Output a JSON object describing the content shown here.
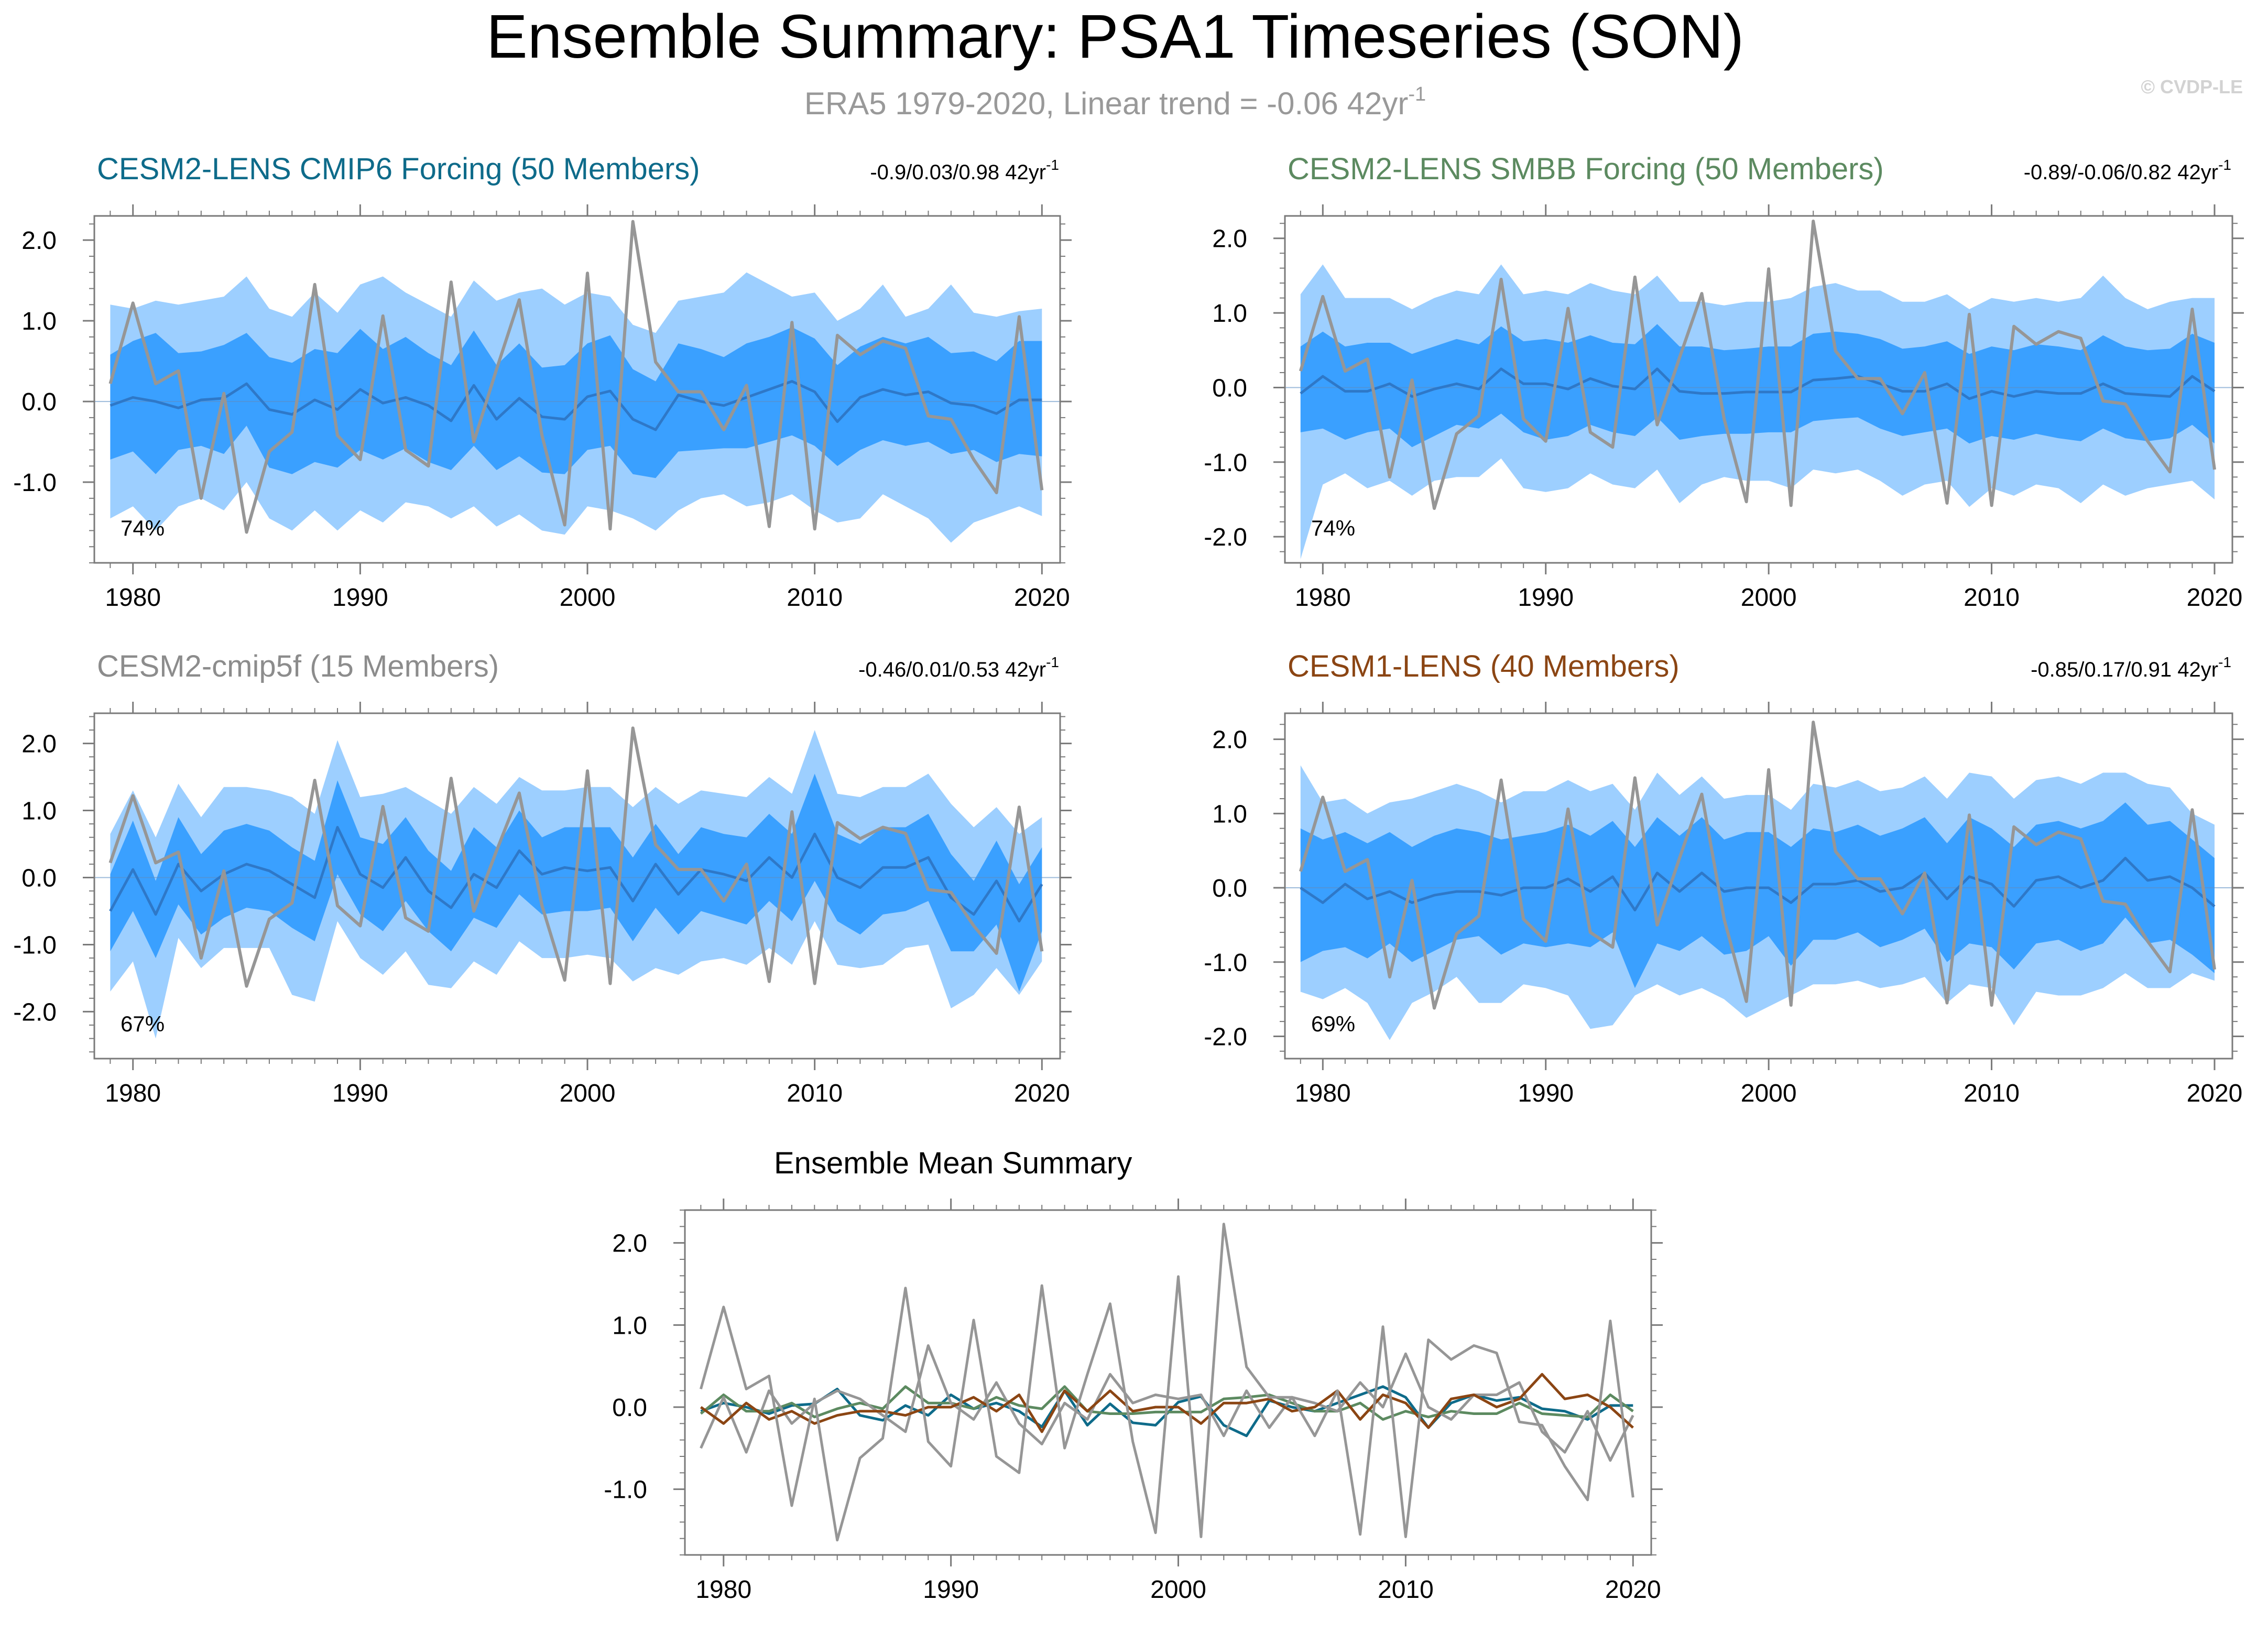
{
  "page": {
    "title": "Ensemble Summary: PSA1 Timeseries (SON)",
    "subtitle": "ERA5 1979-2020, Linear trend = -0.06 42yr",
    "subtitle_sup": "-1",
    "watermark": "© CVDP-LE"
  },
  "colors": {
    "band_outer": "#9dcfff",
    "band_inner": "#3aa0ff",
    "ens_mean": "#2e78c8",
    "obs": "#969696",
    "frame": "#7a7a7a",
    "title_cmip6": "#0e6b8a",
    "title_smbb": "#5c8a60",
    "title_cmip5f": "#8c8c8c",
    "title_cesm1": "#8b4513"
  },
  "chart_data": [
    {
      "type": "line",
      "id": "cmip6",
      "title": "CESM2-LENS CMIP6 Forcing (50 Members)",
      "title_color": "#0e6b8a",
      "trend_range": "-0.9/0.03/0.98 42yr",
      "trend_sup": "-1",
      "percent": "74%",
      "xlim": [
        1978.3,
        2020.8
      ],
      "ylim": [
        -2.0,
        2.3
      ],
      "yticks": [
        2.0,
        1.0,
        0.0,
        -1.0
      ],
      "ytick_labels": [
        "2.0",
        "1.0",
        "0.0",
        "-1.0"
      ],
      "xticks": [
        1980,
        1990,
        2000,
        2010,
        2020
      ],
      "xtick_labels": [
        "1980",
        "1990",
        "2000",
        "2010",
        "2020"
      ],
      "x_start": 1979,
      "mean": [
        -0.05,
        0.05,
        0.0,
        -0.08,
        0.02,
        0.04,
        0.22,
        -0.1,
        -0.16,
        0.02,
        -0.1,
        0.15,
        -0.02,
        0.05,
        -0.05,
        -0.24,
        0.2,
        -0.22,
        0.04,
        -0.19,
        -0.22,
        0.06,
        0.13,
        -0.22,
        -0.35,
        0.08,
        0.0,
        -0.05,
        0.05,
        0.15,
        0.25,
        0.12,
        -0.25,
        0.05,
        0.15,
        0.08,
        0.12,
        -0.02,
        -0.05,
        -0.15,
        0.02,
        0.02
      ],
      "p_inner_lo": [
        -0.72,
        -0.62,
        -0.9,
        -0.6,
        -0.55,
        -0.65,
        -0.3,
        -0.82,
        -0.9,
        -0.75,
        -0.82,
        -0.6,
        -0.72,
        -0.58,
        -0.75,
        -0.85,
        -0.55,
        -0.85,
        -0.68,
        -0.88,
        -0.9,
        -0.6,
        -0.55,
        -0.9,
        -0.95,
        -0.62,
        -0.6,
        -0.58,
        -0.58,
        -0.5,
        -0.42,
        -0.55,
        -0.8,
        -0.6,
        -0.48,
        -0.55,
        -0.5,
        -0.65,
        -0.6,
        -0.75,
        -0.65,
        -0.68
      ],
      "p_inner_hi": [
        0.58,
        0.75,
        0.85,
        0.6,
        0.62,
        0.7,
        0.85,
        0.55,
        0.48,
        0.65,
        0.6,
        0.9,
        0.65,
        0.8,
        0.6,
        0.45,
        0.88,
        0.45,
        0.72,
        0.42,
        0.45,
        0.72,
        0.82,
        0.4,
        0.25,
        0.72,
        0.65,
        0.55,
        0.72,
        0.8,
        0.92,
        0.78,
        0.45,
        0.68,
        0.8,
        0.72,
        0.8,
        0.6,
        0.62,
        0.5,
        0.75,
        0.75
      ],
      "p_outer_lo": [
        -1.45,
        -1.3,
        -1.6,
        -1.3,
        -1.2,
        -1.35,
        -1.0,
        -1.45,
        -1.6,
        -1.35,
        -1.6,
        -1.35,
        -1.5,
        -1.25,
        -1.3,
        -1.45,
        -1.3,
        -1.55,
        -1.4,
        -1.6,
        -1.65,
        -1.3,
        -1.35,
        -1.45,
        -1.6,
        -1.35,
        -1.2,
        -1.15,
        -1.3,
        -1.25,
        -1.15,
        -1.35,
        -1.5,
        -1.45,
        -1.15,
        -1.3,
        -1.45,
        -1.75,
        -1.5,
        -1.4,
        -1.3,
        -1.42
      ],
      "p_outer_hi": [
        1.2,
        1.15,
        1.25,
        1.2,
        1.25,
        1.3,
        1.55,
        1.15,
        1.05,
        1.35,
        1.1,
        1.45,
        1.55,
        1.35,
        1.2,
        1.05,
        1.5,
        1.25,
        1.35,
        1.4,
        1.2,
        1.35,
        1.3,
        0.95,
        0.85,
        1.25,
        1.3,
        1.35,
        1.6,
        1.45,
        1.3,
        1.35,
        1.0,
        1.15,
        1.45,
        1.05,
        1.15,
        1.45,
        1.1,
        1.05,
        1.12,
        1.15
      ]
    },
    {
      "type": "line",
      "id": "smbb",
      "title": "CESM2-LENS SMBB Forcing (50 Members)",
      "title_color": "#5c8a60",
      "trend_range": "-0.89/-0.06/0.82 42yr",
      "trend_sup": "-1",
      "percent": "74%",
      "xlim": [
        1978.3,
        2020.8
      ],
      "ylim": [
        -2.35,
        2.3
      ],
      "yticks": [
        2.0,
        1.0,
        0.0,
        -1.0,
        -2.0
      ],
      "ytick_labels": [
        "2.0",
        "1.0",
        "0.0",
        "-1.0",
        "-2.0"
      ],
      "xticks": [
        1980,
        1990,
        2000,
        2010,
        2020
      ],
      "xtick_labels": [
        "1980",
        "1990",
        "2000",
        "2010",
        "2020"
      ],
      "x_start": 1979,
      "mean": [
        -0.08,
        0.15,
        -0.05,
        -0.05,
        0.05,
        -0.12,
        -0.02,
        0.05,
        -0.02,
        0.25,
        0.05,
        0.05,
        -0.02,
        0.12,
        0.02,
        -0.02,
        0.25,
        -0.05,
        -0.08,
        -0.08,
        -0.06,
        -0.06,
        -0.06,
        0.1,
        0.12,
        0.15,
        0.05,
        -0.05,
        -0.05,
        0.05,
        -0.15,
        -0.05,
        -0.12,
        -0.05,
        -0.08,
        -0.08,
        0.05,
        -0.08,
        -0.1,
        -0.12,
        0.15,
        -0.05
      ],
      "p_inner_lo": [
        -0.6,
        -0.55,
        -0.7,
        -0.6,
        -0.55,
        -0.8,
        -0.65,
        -0.5,
        -0.55,
        -0.35,
        -0.6,
        -0.7,
        -0.65,
        -0.5,
        -0.6,
        -0.65,
        -0.4,
        -0.7,
        -0.65,
        -0.62,
        -0.62,
        -0.6,
        -0.6,
        -0.45,
        -0.42,
        -0.4,
        -0.55,
        -0.65,
        -0.6,
        -0.55,
        -0.75,
        -0.65,
        -0.7,
        -0.62,
        -0.68,
        -0.72,
        -0.55,
        -0.68,
        -0.72,
        -0.68,
        -0.5,
        -0.75
      ],
      "p_inner_hi": [
        0.55,
        0.75,
        0.55,
        0.6,
        0.6,
        0.45,
        0.55,
        0.65,
        0.58,
        0.82,
        0.62,
        0.65,
        0.6,
        0.7,
        0.6,
        0.58,
        0.85,
        0.55,
        0.55,
        0.5,
        0.52,
        0.55,
        0.55,
        0.72,
        0.75,
        0.72,
        0.65,
        0.52,
        0.55,
        0.62,
        0.45,
        0.55,
        0.5,
        0.58,
        0.55,
        0.5,
        0.7,
        0.55,
        0.5,
        0.52,
        0.72,
        0.6
      ],
      "p_outer_lo": [
        -2.3,
        -1.3,
        -1.15,
        -1.35,
        -1.25,
        -1.45,
        -1.25,
        -1.2,
        -1.2,
        -0.95,
        -1.35,
        -1.4,
        -1.35,
        -1.15,
        -1.3,
        -1.35,
        -1.1,
        -1.55,
        -1.3,
        -1.2,
        -1.25,
        -1.25,
        -1.35,
        -1.1,
        -1.15,
        -1.1,
        -1.25,
        -1.45,
        -1.3,
        -1.25,
        -1.6,
        -1.35,
        -1.45,
        -1.3,
        -1.35,
        -1.55,
        -1.3,
        -1.45,
        -1.35,
        -1.3,
        -1.25,
        -1.5
      ],
      "p_outer_hi": [
        1.25,
        1.65,
        1.2,
        1.2,
        1.2,
        1.05,
        1.2,
        1.3,
        1.25,
        1.65,
        1.25,
        1.3,
        1.25,
        1.4,
        1.3,
        1.25,
        1.5,
        1.15,
        1.15,
        1.1,
        1.15,
        1.15,
        1.2,
        1.35,
        1.4,
        1.3,
        1.3,
        1.15,
        1.15,
        1.25,
        1.05,
        1.2,
        1.15,
        1.2,
        1.15,
        1.2,
        1.5,
        1.2,
        1.05,
        1.15,
        1.2,
        1.2
      ]
    },
    {
      "type": "line",
      "id": "cmip5f",
      "title": "CESM2-cmip5f (15 Members)",
      "title_color": "#8c8c8c",
      "trend_range": "-0.46/0.01/0.53 42yr",
      "trend_sup": "-1",
      "percent": "67%",
      "xlim": [
        1978.3,
        2020.8
      ],
      "ylim": [
        -2.7,
        2.45
      ],
      "yticks": [
        2.0,
        1.0,
        0.0,
        -1.0,
        -2.0
      ],
      "ytick_labels": [
        "2.0",
        "1.0",
        "0.0",
        "-1.0",
        "-2.0"
      ],
      "xticks": [
        1980,
        1990,
        2000,
        2010,
        2020
      ],
      "xtick_labels": [
        "1980",
        "1990",
        "2000",
        "2010",
        "2020"
      ],
      "x_start": 1979,
      "mean": [
        -0.5,
        0.12,
        -0.55,
        0.2,
        -0.2,
        0.05,
        0.2,
        0.1,
        -0.1,
        -0.3,
        0.75,
        0.05,
        -0.15,
        0.3,
        -0.2,
        -0.45,
        0.05,
        -0.15,
        0.4,
        0.05,
        0.15,
        0.1,
        0.15,
        -0.35,
        0.2,
        -0.25,
        0.12,
        0.05,
        -0.05,
        0.3,
        0.0,
        0.65,
        0.0,
        -0.15,
        0.15,
        0.15,
        0.3,
        -0.3,
        -0.55,
        -0.05,
        -0.65,
        -0.1
      ],
      "p_inner_lo": [
        -1.1,
        -0.5,
        -1.2,
        -0.4,
        -0.85,
        -0.6,
        -0.45,
        -0.5,
        -0.75,
        -0.95,
        0.05,
        -0.55,
        -0.8,
        -0.35,
        -0.8,
        -1.1,
        -0.6,
        -0.75,
        -0.25,
        -0.55,
        -0.5,
        -0.5,
        -0.45,
        -0.95,
        -0.45,
        -0.85,
        -0.5,
        -0.6,
        -0.7,
        -0.35,
        -0.65,
        -0.05,
        -0.65,
        -0.85,
        -0.55,
        -0.5,
        -0.35,
        -1.1,
        -1.1,
        -0.7,
        -1.7,
        -0.8
      ],
      "p_inner_hi": [
        0.05,
        0.85,
        -0.05,
        0.9,
        0.35,
        0.7,
        0.8,
        0.7,
        0.45,
        0.25,
        1.45,
        0.6,
        0.5,
        0.9,
        0.4,
        0.1,
        0.75,
        0.45,
        1.0,
        0.6,
        0.75,
        0.75,
        0.75,
        0.3,
        0.8,
        0.35,
        0.75,
        0.65,
        0.6,
        0.95,
        0.65,
        1.55,
        0.65,
        0.5,
        0.75,
        0.75,
        0.95,
        0.35,
        -0.05,
        0.55,
        -0.1,
        0.45
      ],
      "p_outer_lo": [
        -1.7,
        -1.25,
        -2.4,
        -0.9,
        -1.35,
        -1.05,
        -1.05,
        -1.05,
        -1.75,
        -1.85,
        -0.65,
        -1.2,
        -1.45,
        -1.1,
        -1.6,
        -1.65,
        -1.25,
        -1.45,
        -0.95,
        -1.2,
        -1.2,
        -1.15,
        -1.2,
        -1.55,
        -1.35,
        -1.45,
        -1.25,
        -1.2,
        -1.3,
        -1.05,
        -1.3,
        -0.65,
        -1.3,
        -1.35,
        -1.3,
        -1.05,
        -1.0,
        -1.95,
        -1.75,
        -1.35,
        -1.75,
        -1.25
      ],
      "p_outer_hi": [
        0.65,
        1.3,
        0.6,
        1.4,
        0.9,
        1.35,
        1.35,
        1.3,
        1.2,
        0.95,
        2.05,
        1.2,
        1.25,
        1.35,
        1.15,
        0.95,
        1.35,
        1.1,
        1.5,
        1.3,
        1.3,
        1.35,
        1.35,
        1.05,
        1.35,
        1.1,
        1.3,
        1.25,
        1.2,
        1.5,
        1.25,
        2.2,
        1.25,
        1.2,
        1.35,
        1.35,
        1.55,
        1.1,
        0.75,
        1.05,
        0.65,
        0.9
      ]
    },
    {
      "type": "line",
      "id": "cesm1",
      "title": "CESM1-LENS (40 Members)",
      "title_color": "#8b4513",
      "trend_range": "-0.85/0.17/0.91 42yr",
      "trend_sup": "-1",
      "percent": "69%",
      "xlim": [
        1978.3,
        2020.8
      ],
      "ylim": [
        -2.3,
        2.35
      ],
      "yticks": [
        2.0,
        1.0,
        0.0,
        -1.0,
        -2.0
      ],
      "ytick_labels": [
        "2.0",
        "1.0",
        "0.0",
        "-1.0",
        "-2.0"
      ],
      "xticks": [
        1980,
        1990,
        2000,
        2010,
        2020
      ],
      "xtick_labels": [
        "1980",
        "1990",
        "2000",
        "2010",
        "2020"
      ],
      "x_start": 1979,
      "mean": [
        0.0,
        -0.2,
        0.05,
        -0.15,
        -0.05,
        -0.2,
        -0.1,
        -0.05,
        -0.05,
        -0.1,
        0.0,
        0.0,
        0.12,
        -0.05,
        0.15,
        -0.3,
        0.2,
        -0.05,
        0.2,
        -0.05,
        0.0,
        0.0,
        -0.2,
        0.05,
        0.05,
        0.1,
        -0.05,
        0.0,
        0.2,
        -0.15,
        0.15,
        0.05,
        -0.25,
        0.1,
        0.15,
        0.0,
        0.1,
        0.4,
        0.1,
        0.15,
        0.0,
        -0.25
      ],
      "p_inner_lo": [
        -1.0,
        -0.85,
        -0.8,
        -0.95,
        -0.75,
        -1.0,
        -0.85,
        -0.7,
        -0.65,
        -0.9,
        -0.75,
        -0.8,
        -0.75,
        -0.8,
        -0.6,
        -1.35,
        -0.75,
        -0.85,
        -0.65,
        -0.9,
        -0.85,
        -0.65,
        -1.05,
        -0.7,
        -0.7,
        -0.6,
        -0.8,
        -0.7,
        -0.55,
        -1.0,
        -0.75,
        -0.8,
        -1.1,
        -0.75,
        -0.7,
        -0.85,
        -0.75,
        -0.4,
        -0.75,
        -0.7,
        -0.9,
        -1.15
      ],
      "p_inner_hi": [
        0.8,
        0.65,
        0.75,
        0.6,
        0.75,
        0.55,
        0.7,
        0.8,
        0.75,
        0.65,
        0.7,
        0.75,
        0.85,
        0.7,
        0.9,
        0.55,
        0.95,
        0.7,
        0.95,
        0.65,
        0.75,
        0.75,
        0.55,
        0.8,
        0.75,
        0.85,
        0.7,
        0.8,
        0.95,
        0.6,
        0.95,
        0.8,
        0.55,
        0.85,
        0.9,
        0.8,
        0.9,
        1.15,
        0.85,
        0.9,
        0.65,
        0.4
      ],
      "p_outer_lo": [
        -1.4,
        -1.5,
        -1.35,
        -1.55,
        -2.05,
        -1.55,
        -1.4,
        -1.2,
        -1.55,
        -1.55,
        -1.3,
        -1.35,
        -1.45,
        -1.9,
        -1.85,
        -1.45,
        -1.3,
        -1.45,
        -1.35,
        -1.5,
        -1.75,
        -1.6,
        -1.45,
        -1.3,
        -1.3,
        -1.25,
        -1.35,
        -1.3,
        -1.2,
        -1.55,
        -1.3,
        -1.35,
        -1.85,
        -1.4,
        -1.45,
        -1.45,
        -1.35,
        -1.15,
        -1.35,
        -1.35,
        -1.15,
        -1.25
      ],
      "p_outer_hi": [
        1.65,
        1.15,
        1.2,
        1.0,
        1.15,
        1.2,
        1.3,
        1.4,
        1.3,
        1.15,
        1.3,
        1.3,
        1.45,
        1.3,
        1.4,
        1.05,
        1.55,
        1.25,
        1.5,
        1.2,
        1.25,
        1.25,
        1.05,
        1.4,
        1.35,
        1.45,
        1.3,
        1.35,
        1.5,
        1.2,
        1.55,
        1.5,
        1.2,
        1.45,
        1.5,
        1.4,
        1.55,
        1.55,
        1.4,
        1.35,
        1.0,
        0.85
      ]
    },
    {
      "type": "line",
      "id": "ensmean",
      "title": "Ensemble Mean Summary",
      "title_color": "#000000",
      "xlim": [
        1978.3,
        2020.8
      ],
      "ylim": [
        -1.8,
        2.4
      ],
      "yticks": [
        2.0,
        1.0,
        0.0,
        -1.0
      ],
      "ytick_labels": [
        "2.0",
        "1.0",
        "0.0",
        "-1.0"
      ],
      "xticks": [
        1980,
        1990,
        2000,
        2010,
        2020
      ],
      "xtick_labels": [
        "1980",
        "1990",
        "2000",
        "2010",
        "2020"
      ],
      "x_start": 1979,
      "series": [
        {
          "name": "CESM2-LENS CMIP6 Forcing",
          "color": "#0e6b8a",
          "ref": "cmip6"
        },
        {
          "name": "CESM2-LENS SMBB Forcing",
          "color": "#5c8a60",
          "ref": "smbb"
        },
        {
          "name": "CESM2-cmip5f",
          "color": "#969696",
          "ref": "cmip5f"
        },
        {
          "name": "CESM1-LENS",
          "color": "#8b4513",
          "ref": "cesm1"
        },
        {
          "name": "ERA5",
          "color": "#969696",
          "ref": "obs"
        }
      ]
    }
  ],
  "obs": {
    "name": "ERA5",
    "x_start": 1979,
    "values": [
      0.22,
      1.22,
      0.22,
      0.38,
      -1.2,
      0.1,
      -1.62,
      -0.62,
      -0.38,
      1.45,
      -0.42,
      -0.72,
      1.06,
      -0.6,
      -0.8,
      1.48,
      -0.5,
      0.4,
      1.26,
      -0.42,
      -1.53,
      1.59,
      -1.58,
      2.23,
      0.49,
      0.12,
      0.12,
      -0.35,
      0.2,
      -1.55,
      0.98,
      -1.58,
      0.82,
      0.58,
      0.75,
      0.66,
      -0.18,
      -0.22,
      -0.72,
      -1.13,
      1.05,
      -1.1
    ]
  }
}
